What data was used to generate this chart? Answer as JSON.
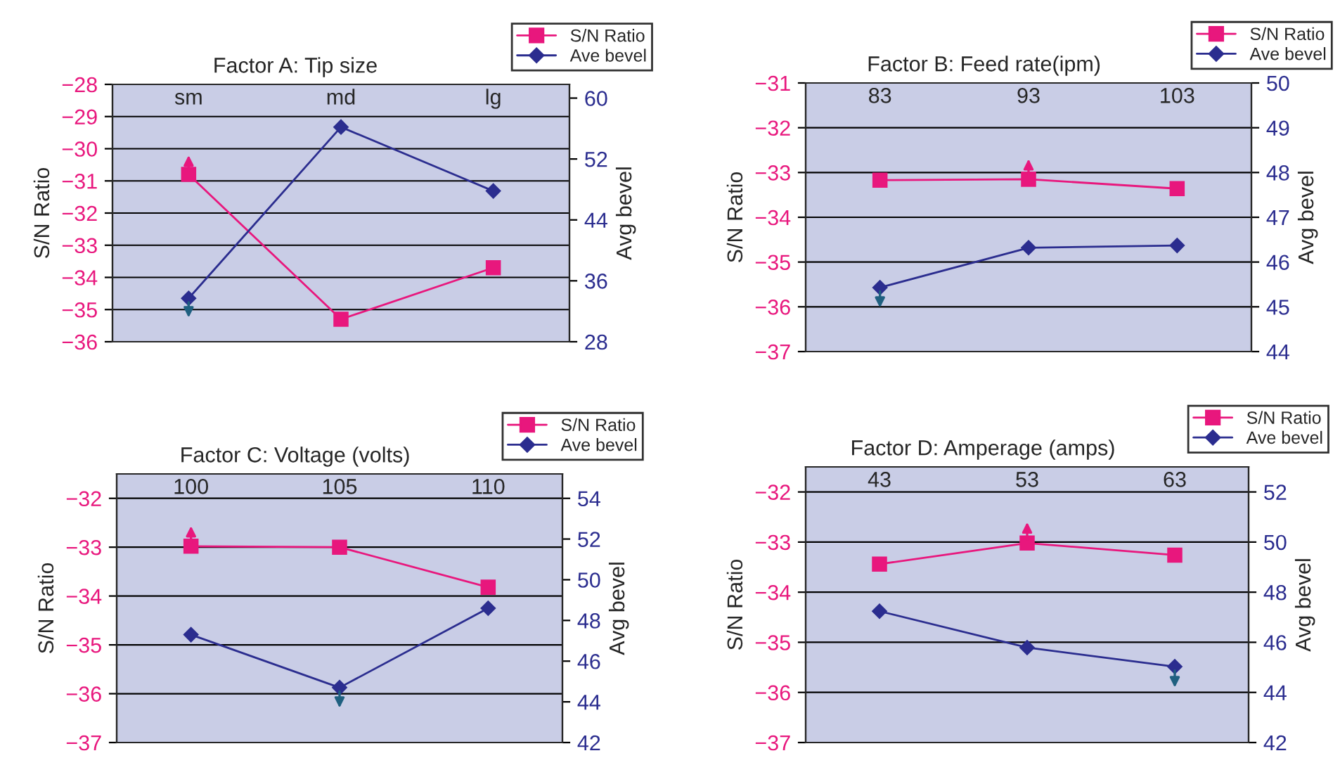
{
  "chart_data": [
    {
      "type": "line",
      "title": "Factor A: Tip size",
      "categories": [
        "sm",
        "md",
        "lg"
      ],
      "ylabel": "S/N Ratio",
      "y2label": "Avg bevel",
      "ylim": [
        -36,
        -28
      ],
      "yticks": [
        -36,
        -35,
        -34,
        -33,
        -32,
        -31,
        -30,
        -29,
        -28
      ],
      "y2lim": [
        28,
        61.8
      ],
      "y2ticks": [
        28,
        36,
        44,
        52,
        60
      ],
      "grid": "y",
      "legend": "top right",
      "series": [
        {
          "name": "S/N Ratio",
          "color": "#e8177d",
          "marker": "square",
          "values": [
            -30.8,
            -35.3,
            -33.7
          ]
        },
        {
          "name": "Ave bevel",
          "color": "#2b2d8f",
          "marker": "diamond",
          "axis": "y2",
          "values": [
            33.7,
            56.2,
            47.8
          ]
        }
      ]
    },
    {
      "type": "line",
      "title": "Factor B: Feed rate(ipm)",
      "categories": [
        "83",
        "93",
        "103"
      ],
      "ylabel": "S/N Ratio",
      "y2label": "Avg bevel",
      "ylim": [
        -37,
        -31
      ],
      "yticks": [
        -37,
        -36,
        -35,
        -34,
        -33,
        -32,
        -31
      ],
      "y2lim": [
        44,
        50
      ],
      "y2ticks": [
        44,
        45,
        46,
        47,
        48,
        49,
        50
      ],
      "grid": "y",
      "legend": "top right",
      "series": [
        {
          "name": "S/N Ratio",
          "color": "#e8177d",
          "marker": "square",
          "values": [
            -33.17,
            -33.15,
            -33.36
          ]
        },
        {
          "name": "Ave bevel",
          "color": "#2b2d8f",
          "marker": "diamond",
          "axis": "y2",
          "values": [
            45.43,
            46.32,
            46.37
          ]
        }
      ]
    },
    {
      "type": "line",
      "title": "Factor C: Voltage (volts)",
      "categories": [
        "100",
        "105",
        "110"
      ],
      "ylabel": "S/N Ratio",
      "y2label": "Avg bevel",
      "ylim": [
        -37,
        -31.5
      ],
      "yticks": [
        -37,
        -36,
        -35,
        -34,
        -33,
        -32
      ],
      "y2lim": [
        42,
        55.2
      ],
      "y2ticks": [
        42,
        44,
        46,
        48,
        50,
        52,
        54
      ],
      "grid": "y",
      "legend": "top right",
      "series": [
        {
          "name": "S/N Ratio",
          "color": "#e8177d",
          "marker": "square",
          "values": [
            -32.98,
            -33.0,
            -33.82
          ]
        },
        {
          "name": "Ave bevel",
          "color": "#2b2d8f",
          "marker": "diamond",
          "axis": "y2",
          "values": [
            47.3,
            44.7,
            48.6
          ]
        }
      ]
    },
    {
      "type": "line",
      "title": "Factor D: Amperage (amps)",
      "categories": [
        "43",
        "53",
        "63"
      ],
      "ylabel": "S/N Ratio",
      "y2label": "Avg bevel",
      "ylim": [
        -37,
        -31.5
      ],
      "yticks": [
        -37,
        -36,
        -35,
        -34,
        -33,
        -32
      ],
      "y2lim": [
        42,
        53
      ],
      "y2ticks": [
        42,
        44,
        46,
        48,
        50,
        52
      ],
      "grid": "y",
      "legend": "top right",
      "series": [
        {
          "name": "S/N Ratio",
          "color": "#e8177d",
          "marker": "square",
          "values": [
            -33.44,
            -33.02,
            -33.26
          ]
        },
        {
          "name": "Ave bevel",
          "color": "#2b2d8f",
          "marker": "diamond",
          "axis": "y2",
          "values": [
            47.24,
            45.79,
            45.03
          ]
        }
      ]
    }
  ]
}
